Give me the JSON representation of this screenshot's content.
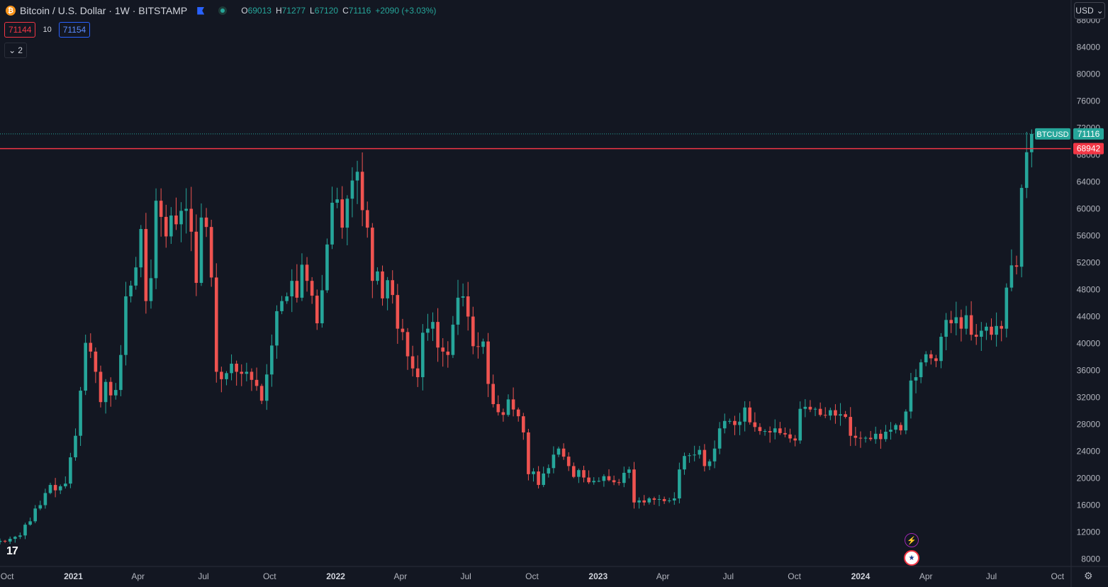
{
  "header": {
    "symbol_title": "Bitcoin / U.S. Dollar · 1W · BITSTAMP",
    "coin_letter": "₿",
    "ohlc": {
      "o_label": "O",
      "o": "69013",
      "h_label": "H",
      "h": "71277",
      "l_label": "L",
      "l": "67120",
      "c_label": "C",
      "c": "71116",
      "change": "+2090 (+3.03%)"
    }
  },
  "trade": {
    "sell": "71144",
    "spread": "10",
    "buy": "71154"
  },
  "indicators_toggle": {
    "chevron": "⌄",
    "count": "2"
  },
  "currency_button": {
    "label": "USD",
    "chevron": "⌄"
  },
  "logo": "17",
  "events": {
    "bolt": "⚡",
    "flag": "★"
  },
  "settings_icon": "⚙",
  "colors": {
    "background": "#131722",
    "up": "#26a69a",
    "down": "#ef5350",
    "level_line": "#f23645",
    "grid_text": "#b2b5be"
  },
  "chart_data": {
    "type": "candlestick",
    "interval": "1W",
    "price_scale_ticks": [
      "8000",
      "12000",
      "16000",
      "20000",
      "24000",
      "28000",
      "32000",
      "36000",
      "40000",
      "44000",
      "48000",
      "52000",
      "56000",
      "60000",
      "64000",
      "68000",
      "72000",
      "76000",
      "80000",
      "84000",
      "88000"
    ],
    "time_labels": [
      {
        "label": "Oct",
        "date": "2020-10-01",
        "bold": false
      },
      {
        "label": "2021",
        "date": "2021-01-01",
        "bold": true
      },
      {
        "label": "Apr",
        "date": "2021-04-01",
        "bold": false
      },
      {
        "label": "Jul",
        "date": "2021-07-01",
        "bold": false
      },
      {
        "label": "Oct",
        "date": "2021-10-01",
        "bold": false
      },
      {
        "label": "2022",
        "date": "2022-01-01",
        "bold": true
      },
      {
        "label": "Apr",
        "date": "2022-04-01",
        "bold": false
      },
      {
        "label": "Jul",
        "date": "2022-07-01",
        "bold": false
      },
      {
        "label": "Oct",
        "date": "2022-10-01",
        "bold": false
      },
      {
        "label": "2023",
        "date": "2023-01-01",
        "bold": true
      },
      {
        "label": "Apr",
        "date": "2023-04-01",
        "bold": false
      },
      {
        "label": "Jul",
        "date": "2023-07-01",
        "bold": false
      },
      {
        "label": "Oct",
        "date": "2023-10-01",
        "bold": false
      },
      {
        "label": "2024",
        "date": "2024-01-01",
        "bold": true
      },
      {
        "label": "Apr",
        "date": "2024-04-01",
        "bold": false
      },
      {
        "label": "Jul",
        "date": "2024-07-01",
        "bold": false
      },
      {
        "label": "Oct",
        "date": "2024-10-01",
        "bold": false
      }
    ],
    "last_price": {
      "symbol": "BTCUSD",
      "value": "71116"
    },
    "horizontal_level": {
      "value": "68942"
    },
    "x_range": [
      "2020-09-21",
      "2024-10-14"
    ],
    "y_range": [
      6900,
      91000
    ],
    "log_scale": false,
    "grid": false,
    "first_week": "2020-09-21",
    "closes": [
      10700,
      10600,
      11000,
      11300,
      11500,
      13100,
      13600,
      15500,
      16000,
      17800,
      19000,
      18200,
      18800,
      19200,
      23100,
      26300,
      33000,
      40100,
      38800,
      35800,
      31300,
      34300,
      32300,
      33100,
      38300,
      47000,
      48600,
      51300,
      57000,
      46300,
      49700,
      61200,
      58800,
      55900,
      59000,
      57700,
      59700,
      60000,
      56600,
      49000,
      58700,
      57300,
      49800,
      35800,
      34700,
      35600,
      37000,
      35800,
      35500,
      35800,
      34600,
      33700,
      31500,
      35400,
      39700,
      44800,
      46300,
      47000,
      49300,
      46800,
      51700,
      49300,
      47100,
      43000,
      47900,
      54700,
      60900,
      61400,
      57200,
      61500,
      64200,
      65500,
      59800,
      57200,
      49300,
      50700,
      46700,
      49400,
      47200,
      42200,
      41700,
      38100,
      36300,
      35000,
      41600,
      42200,
      43200,
      39400,
      38800,
      38300,
      42800,
      46800,
      47000,
      44000,
      39600,
      39500,
      40300,
      34000,
      31000,
      29800,
      29400,
      31700,
      30200,
      29200,
      26800,
      20600,
      21000,
      19000,
      20700,
      21500,
      23500,
      24400,
      23200,
      21800,
      20200,
      21200,
      20100,
      19400,
      19600,
      19600,
      20300,
      19700,
      19400,
      19300,
      20800,
      21300,
      16400,
      16700,
      16400,
      17000,
      16800,
      16900,
      16600,
      16700,
      17000,
      21300,
      23300,
      23400,
      23500,
      24200,
      21800,
      22500,
      24400,
      27400,
      28500,
      28500,
      27900,
      28400,
      30500,
      28300,
      27600,
      27000,
      27000,
      26800,
      27400,
      26700,
      26500,
      25900,
      25600,
      30300,
      30600,
      30200,
      30300,
      29400,
      29300,
      30100,
      29300,
      29500,
      29100,
      26300,
      26000,
      25900,
      26000,
      25800,
      26600,
      25800,
      26900,
      27200,
      27900,
      27100,
      29900,
      34500,
      35000,
      37200,
      38400,
      37800,
      37400,
      41000,
      43500,
      43000,
      43900,
      42200,
      44200,
      41300,
      41000,
      41900,
      42500,
      41300,
      42600,
      42200,
      48300,
      51600,
      51400,
      63100,
      68400,
      71116
    ]
  }
}
